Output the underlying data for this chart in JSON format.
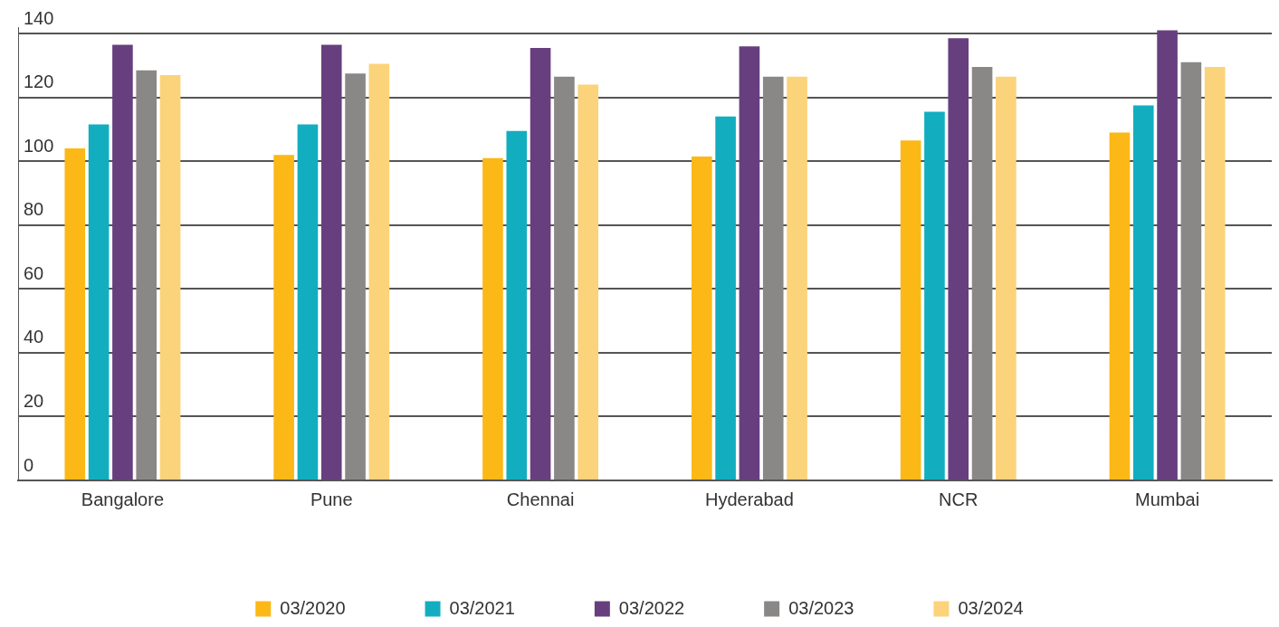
{
  "chart_data": {
    "type": "bar",
    "categories": [
      "Bangalore",
      "Pune",
      "Chennai",
      "Hyderabad",
      "NCR",
      "Mumbai"
    ],
    "series": [
      {
        "name": "03/2020",
        "color": "#fbb817",
        "values": [
          104,
          102,
          101,
          101.5,
          106.5,
          109
        ]
      },
      {
        "name": "03/2021",
        "color": "#12aec0",
        "values": [
          111.5,
          111.5,
          109.5,
          114,
          115.5,
          117.5
        ]
      },
      {
        "name": "03/2022",
        "color": "#673f7e",
        "values": [
          136.5,
          136.5,
          135.5,
          136,
          138.5,
          141
        ]
      },
      {
        "name": "03/2023",
        "color": "#898886",
        "values": [
          128.5,
          127.5,
          126.5,
          126.5,
          129.5,
          131
        ]
      },
      {
        "name": "03/2024",
        "color": "#fbd37a",
        "values": [
          127,
          130.5,
          124,
          126.5,
          126.5,
          129.5
        ]
      }
    ],
    "ylim": [
      0,
      142
    ],
    "yticks": [
      0,
      20,
      40,
      60,
      80,
      100,
      120,
      140
    ],
    "grid": "y",
    "legend": "bottom"
  }
}
